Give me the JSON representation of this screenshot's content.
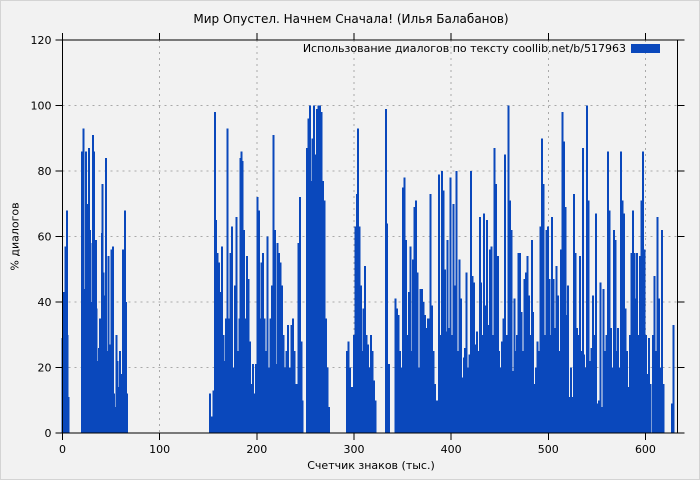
{
  "chart_data": {
    "type": "bar",
    "style": "impulses",
    "title": "Мир Опустел. Начнем Сначала! (Илья Балабанов)",
    "legend": "Использование диалогов по тексту  coollib.net/b/517963",
    "xlabel": "Счетчик знаков (тыс.)",
    "ylabel": "% диалогов",
    "xlim": [
      0,
      633
    ],
    "ylim": [
      0,
      120
    ],
    "xticks": [
      0,
      100,
      200,
      300,
      400,
      500,
      600
    ],
    "yticks": [
      0,
      20,
      40,
      60,
      80,
      100,
      120
    ],
    "grid": true,
    "legend_position": "top-right",
    "bar_color": "#0a48bc",
    "background_color": "#f2f2f2",
    "grid_color": "#a9a9a9",
    "axis_color": "#000000",
    "points": [
      [
        0,
        29
      ],
      [
        0.8,
        43
      ],
      [
        1.6,
        28
      ],
      [
        3.2,
        57
      ],
      [
        4.4,
        68
      ],
      [
        5.4,
        30
      ],
      [
        6.2,
        11
      ],
      [
        20,
        86
      ],
      [
        21,
        57
      ],
      [
        21.8,
        93
      ],
      [
        22.8,
        44
      ],
      [
        23.6,
        30
      ],
      [
        24.4,
        86
      ],
      [
        25.4,
        70
      ],
      [
        26.4,
        20
      ],
      [
        27.2,
        87
      ],
      [
        28.2,
        62
      ],
      [
        29,
        58
      ],
      [
        30,
        40
      ],
      [
        30.8,
        24
      ],
      [
        31.6,
        91
      ],
      [
        32.6,
        86
      ],
      [
        33.4,
        47
      ],
      [
        34.4,
        59
      ],
      [
        35.2,
        38
      ],
      [
        36,
        22
      ],
      [
        37,
        17
      ],
      [
        37.8,
        26
      ],
      [
        38.8,
        35
      ],
      [
        39.6,
        20
      ],
      [
        40.4,
        61
      ],
      [
        41.4,
        76
      ],
      [
        42.2,
        49
      ],
      [
        43.2,
        30
      ],
      [
        44,
        42
      ],
      [
        45,
        84
      ],
      [
        45.8,
        25
      ],
      [
        46.8,
        19
      ],
      [
        47.6,
        54
      ],
      [
        48.6,
        27
      ],
      [
        49.4,
        20
      ],
      [
        50.4,
        56
      ],
      [
        51.2,
        16
      ],
      [
        52.2,
        57
      ],
      [
        53,
        12
      ],
      [
        54.2,
        8
      ],
      [
        55.4,
        30
      ],
      [
        56.6,
        22
      ],
      [
        57.8,
        14
      ],
      [
        59,
        25
      ],
      [
        60.2,
        11
      ],
      [
        61.4,
        18
      ],
      [
        62.4,
        56
      ],
      [
        63.4,
        33
      ],
      [
        64.4,
        68
      ],
      [
        65.4,
        40
      ],
      [
        66.2,
        12
      ],
      [
        152,
        12
      ],
      [
        153.5,
        5
      ],
      [
        155.5,
        13
      ],
      [
        157,
        98
      ],
      [
        158,
        65
      ],
      [
        159.5,
        55
      ],
      [
        161,
        52
      ],
      [
        162.5,
        43
      ],
      [
        164,
        57
      ],
      [
        165.5,
        30
      ],
      [
        167,
        22
      ],
      [
        168.5,
        35
      ],
      [
        170,
        93
      ],
      [
        171.5,
        35
      ],
      [
        173,
        55
      ],
      [
        174.5,
        63
      ],
      [
        176,
        20
      ],
      [
        177.5,
        45
      ],
      [
        179,
        66
      ],
      [
        180.5,
        25
      ],
      [
        182,
        35
      ],
      [
        183,
        84
      ],
      [
        184,
        86
      ],
      [
        185.5,
        83
      ],
      [
        187,
        62
      ],
      [
        188.5,
        35
      ],
      [
        190,
        54
      ],
      [
        191.5,
        47
      ],
      [
        193,
        28
      ],
      [
        194.5,
        15
      ],
      [
        196,
        21
      ],
      [
        197.5,
        12
      ],
      [
        199,
        21
      ],
      [
        200.5,
        72
      ],
      [
        202,
        68
      ],
      [
        203.5,
        35
      ],
      [
        205,
        52
      ],
      [
        206.5,
        55
      ],
      [
        208,
        35
      ],
      [
        209.5,
        25
      ],
      [
        211,
        60
      ],
      [
        212.5,
        20
      ],
      [
        214,
        35
      ],
      [
        215.5,
        45
      ],
      [
        217,
        91
      ],
      [
        218.5,
        62
      ],
      [
        220,
        21
      ],
      [
        221.5,
        58
      ],
      [
        223,
        55
      ],
      [
        224.5,
        52
      ],
      [
        226,
        45
      ],
      [
        227.5,
        30
      ],
      [
        229,
        20
      ],
      [
        230.5,
        25
      ],
      [
        232,
        33
      ],
      [
        234,
        20
      ],
      [
        235.5,
        33
      ],
      [
        237,
        35
      ],
      [
        239,
        25
      ],
      [
        241,
        15
      ],
      [
        243,
        58
      ],
      [
        244.5,
        72
      ],
      [
        246,
        28
      ],
      [
        247,
        10
      ],
      [
        251.5,
        87
      ],
      [
        253,
        96
      ],
      [
        254.5,
        100
      ],
      [
        256,
        77
      ],
      [
        257.5,
        90
      ],
      [
        259,
        100
      ],
      [
        260.5,
        85
      ],
      [
        262,
        99
      ],
      [
        263.5,
        100
      ],
      [
        265,
        100
      ],
      [
        266.5,
        98
      ],
      [
        268,
        77
      ],
      [
        269.5,
        71
      ],
      [
        271,
        35
      ],
      [
        272.5,
        20
      ],
      [
        274.5,
        8
      ],
      [
        293,
        25
      ],
      [
        294.5,
        28
      ],
      [
        296,
        20
      ],
      [
        298,
        14
      ],
      [
        300,
        30
      ],
      [
        301.5,
        63
      ],
      [
        303,
        73
      ],
      [
        304.2,
        93
      ],
      [
        305.5,
        63
      ],
      [
        307,
        45
      ],
      [
        308.5,
        25
      ],
      [
        310,
        38
      ],
      [
        311.5,
        51
      ],
      [
        313,
        30
      ],
      [
        314.5,
        27
      ],
      [
        316,
        20
      ],
      [
        317.5,
        30
      ],
      [
        319,
        25
      ],
      [
        320.5,
        16
      ],
      [
        322,
        10
      ],
      [
        333,
        99
      ],
      [
        334.2,
        64
      ],
      [
        336,
        21
      ],
      [
        343,
        41
      ],
      [
        344.5,
        38
      ],
      [
        346,
        36
      ],
      [
        347.5,
        25
      ],
      [
        349,
        20
      ],
      [
        350.5,
        75
      ],
      [
        352,
        78
      ],
      [
        353.5,
        59
      ],
      [
        355,
        30
      ],
      [
        356.5,
        43
      ],
      [
        358,
        57
      ],
      [
        359.5,
        25
      ],
      [
        361,
        53
      ],
      [
        362.5,
        69
      ],
      [
        364,
        71
      ],
      [
        365.5,
        49
      ],
      [
        367,
        20
      ],
      [
        368.5,
        44
      ],
      [
        370,
        44
      ],
      [
        371.5,
        40
      ],
      [
        373,
        36
      ],
      [
        374.5,
        32
      ],
      [
        376,
        35
      ],
      [
        377.5,
        35
      ],
      [
        379,
        73
      ],
      [
        380.5,
        39
      ],
      [
        382,
        25
      ],
      [
        383.5,
        15
      ],
      [
        385.5,
        10
      ],
      [
        387.5,
        79
      ],
      [
        389,
        30
      ],
      [
        390.5,
        80
      ],
      [
        392,
        74
      ],
      [
        393.5,
        50
      ],
      [
        395,
        31
      ],
      [
        396.5,
        59
      ],
      [
        398,
        32
      ],
      [
        399.5,
        78
      ],
      [
        401,
        30
      ],
      [
        402.5,
        70
      ],
      [
        404,
        45
      ],
      [
        405.5,
        80
      ],
      [
        407,
        25
      ],
      [
        408.5,
        53
      ],
      [
        410,
        41
      ],
      [
        411.5,
        17
      ],
      [
        413,
        23
      ],
      [
        414.5,
        26
      ],
      [
        416,
        49
      ],
      [
        417.5,
        20
      ],
      [
        419,
        24
      ],
      [
        420.5,
        80
      ],
      [
        422,
        48
      ],
      [
        423.5,
        46
      ],
      [
        425,
        27
      ],
      [
        426.5,
        31
      ],
      [
        428,
        25
      ],
      [
        429.5,
        66
      ],
      [
        431,
        46
      ],
      [
        432.5,
        30
      ],
      [
        434,
        67
      ],
      [
        435.5,
        39
      ],
      [
        437,
        65
      ],
      [
        438.5,
        33
      ],
      [
        440,
        56
      ],
      [
        441.5,
        57
      ],
      [
        443,
        30
      ],
      [
        444.5,
        87
      ],
      [
        446,
        76
      ],
      [
        448,
        54
      ],
      [
        449.5,
        25
      ],
      [
        451,
        20
      ],
      [
        452.5,
        28
      ],
      [
        454,
        35
      ],
      [
        455.5,
        85
      ],
      [
        457,
        30
      ],
      [
        459,
        100
      ],
      [
        460.5,
        71
      ],
      [
        462,
        62
      ],
      [
        463.5,
        19
      ],
      [
        465,
        41
      ],
      [
        466.5,
        25
      ],
      [
        468,
        30
      ],
      [
        469.5,
        55
      ],
      [
        471,
        55
      ],
      [
        472.5,
        37
      ],
      [
        474,
        25
      ],
      [
        475.5,
        47
      ],
      [
        477,
        49
      ],
      [
        478.5,
        54
      ],
      [
        480,
        42
      ],
      [
        481.5,
        30
      ],
      [
        483,
        59
      ],
      [
        484.5,
        37
      ],
      [
        486,
        15
      ],
      [
        487.5,
        20
      ],
      [
        489,
        28
      ],
      [
        490.5,
        25
      ],
      [
        492,
        63
      ],
      [
        493.5,
        90
      ],
      [
        495,
        76
      ],
      [
        496.5,
        30
      ],
      [
        498,
        62
      ],
      [
        499.5,
        63
      ],
      [
        501,
        47
      ],
      [
        502.5,
        30
      ],
      [
        504,
        66
      ],
      [
        505.5,
        47
      ],
      [
        507,
        32
      ],
      [
        508.5,
        51
      ],
      [
        510,
        42
      ],
      [
        511.5,
        25
      ],
      [
        513,
        56
      ],
      [
        514.5,
        98
      ],
      [
        516,
        89
      ],
      [
        517.5,
        69
      ],
      [
        519,
        36
      ],
      [
        520.5,
        45
      ],
      [
        522,
        11
      ],
      [
        523.5,
        20
      ],
      [
        525,
        11
      ],
      [
        526.5,
        73
      ],
      [
        528,
        55
      ],
      [
        529.5,
        32
      ],
      [
        531,
        30
      ],
      [
        532.5,
        54
      ],
      [
        534,
        25
      ],
      [
        535.5,
        87
      ],
      [
        537,
        24
      ],
      [
        538.5,
        20
      ],
      [
        540,
        100
      ],
      [
        541.5,
        71
      ],
      [
        543,
        22
      ],
      [
        544.5,
        26
      ],
      [
        546,
        42
      ],
      [
        547.5,
        30
      ],
      [
        549,
        67
      ],
      [
        550.5,
        9
      ],
      [
        552,
        10
      ],
      [
        553.5,
        46
      ],
      [
        555,
        8
      ],
      [
        557,
        44
      ],
      [
        558.5,
        25
      ],
      [
        560,
        30
      ],
      [
        561.5,
        86
      ],
      [
        563,
        68
      ],
      [
        564.5,
        32
      ],
      [
        566,
        20
      ],
      [
        567.5,
        62
      ],
      [
        569,
        59
      ],
      [
        570.5,
        25
      ],
      [
        572,
        32
      ],
      [
        573.5,
        20
      ],
      [
        575,
        86
      ],
      [
        576.5,
        71
      ],
      [
        578,
        67
      ],
      [
        579.5,
        38
      ],
      [
        581,
        25
      ],
      [
        582.5,
        14
      ],
      [
        584,
        30
      ],
      [
        585.5,
        55
      ],
      [
        587,
        68
      ],
      [
        588.5,
        55
      ],
      [
        590,
        41
      ],
      [
        591.5,
        55
      ],
      [
        593,
        30
      ],
      [
        594.5,
        54
      ],
      [
        596,
        71
      ],
      [
        597.5,
        86
      ],
      [
        599,
        56
      ],
      [
        600.5,
        30
      ],
      [
        602,
        18
      ],
      [
        603.5,
        29
      ],
      [
        605,
        15
      ],
      [
        608,
        30
      ],
      [
        609.5,
        48
      ],
      [
        611,
        25
      ],
      [
        612.5,
        66
      ],
      [
        614,
        41
      ],
      [
        615.5,
        20
      ],
      [
        617,
        62
      ],
      [
        618.5,
        15
      ],
      [
        627.5,
        9
      ],
      [
        629,
        33
      ]
    ]
  }
}
